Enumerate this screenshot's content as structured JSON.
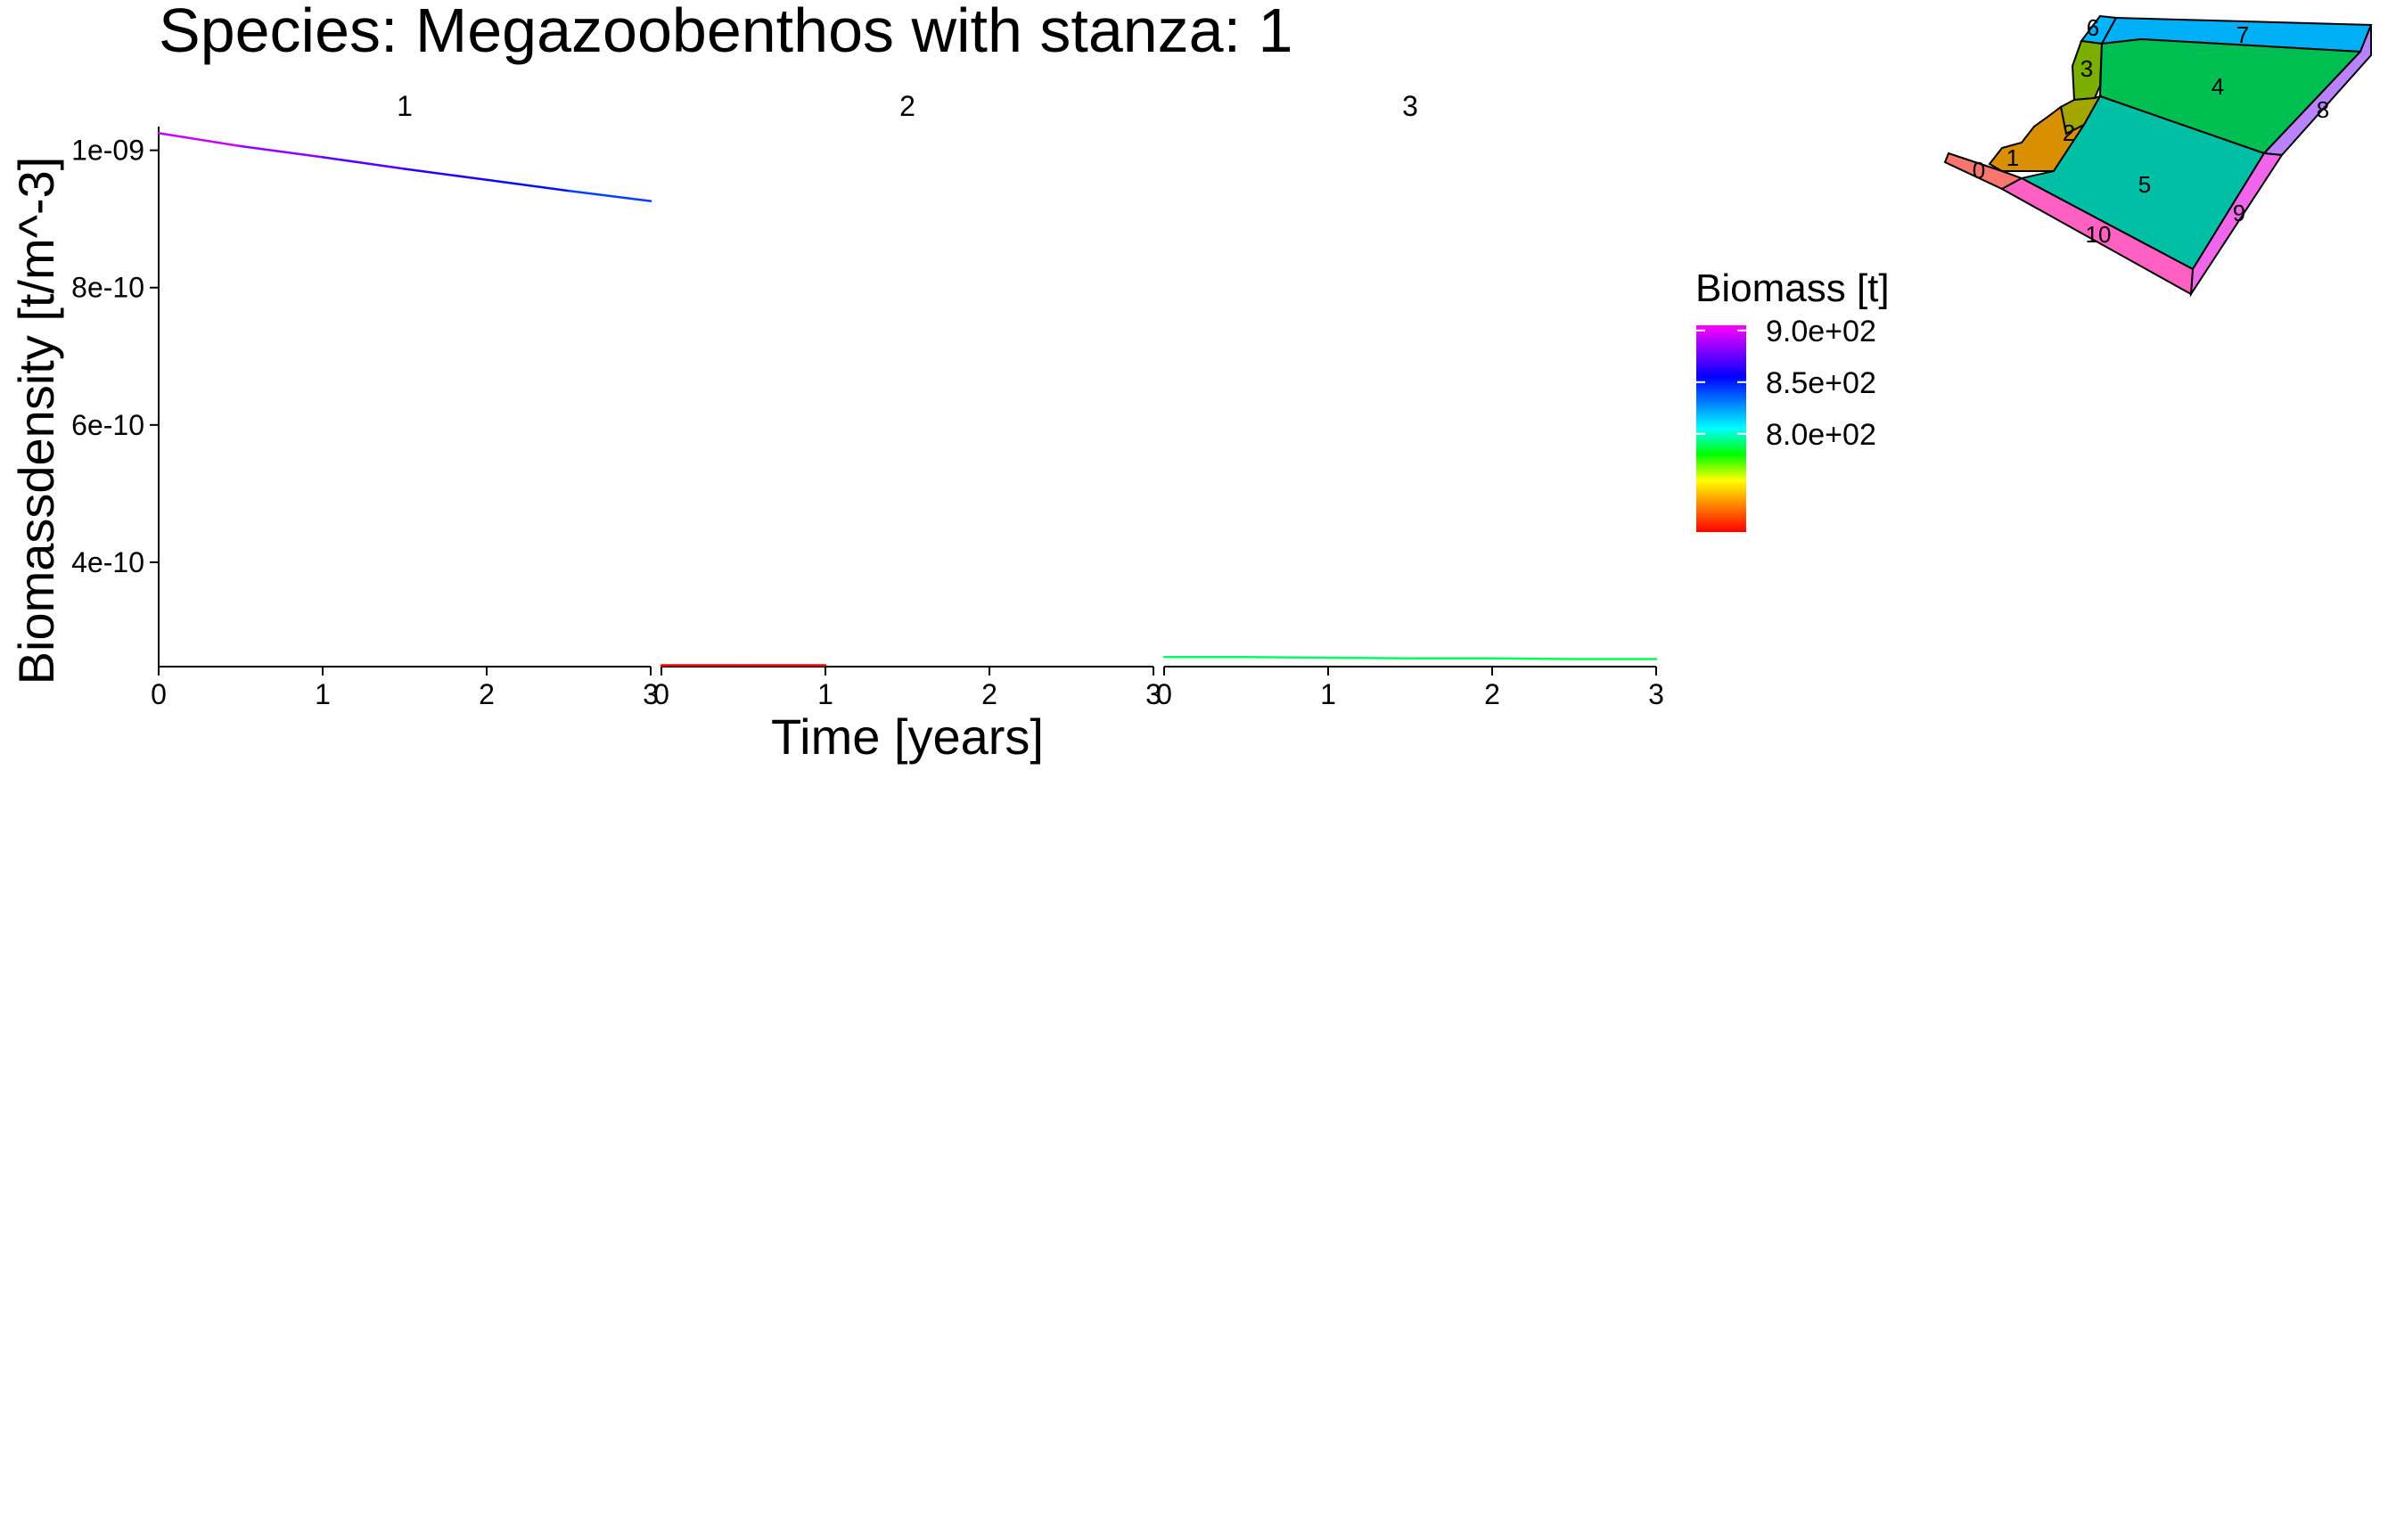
{
  "chart_data": {
    "type": "line",
    "title": "Species: Megazoobenthos with stanza: 1",
    "xlabel": "Time [years]",
    "ylabel": "Biomassdensity [t/m^-3]",
    "y_ticks": [
      {
        "value": 1e-09,
        "label": "1e-09"
      },
      {
        "value": 8e-10,
        "label": "8e-10"
      },
      {
        "value": 6e-10,
        "label": "6e-10"
      },
      {
        "value": 4e-10,
        "label": "4e-10"
      }
    ],
    "ylim": [
      2.48e-10,
      1.0346e-09
    ],
    "xlim": [
      0,
      3
    ],
    "x_ticks": [
      "0",
      "1",
      "2",
      "3"
    ],
    "grid": false,
    "facets": [
      {
        "label": "1",
        "x": [
          0,
          0.5,
          1,
          1.5,
          2,
          2.5,
          3
        ],
        "y": [
          1.025e-09,
          1.006e-09,
          9.9e-10,
          9.73e-10,
          9.57e-10,
          9.41e-10,
          9.26e-10
        ],
        "biomass": [
          900,
          889,
          878,
          867,
          857,
          847,
          838
        ]
      },
      {
        "label": "2",
        "x": [
          0,
          0.5,
          1
        ],
        "y": [
          2.5e-10,
          2.5e-10,
          2.5e-10
        ],
        "biomass": [
          700,
          700,
          700
        ]
      },
      {
        "label": "3",
        "x": [
          0,
          0.5,
          1,
          1.5,
          2,
          2.5,
          3
        ],
        "y": [
          2.62e-10,
          2.62e-10,
          2.61e-10,
          2.6e-10,
          2.6e-10,
          2.59e-10,
          2.59e-10
        ],
        "biomass": [
          790,
          790,
          790,
          789,
          789,
          788,
          788
        ]
      }
    ],
    "color_scale": {
      "title": "Biomass [t]",
      "min": 705,
      "max": 905,
      "ticks": [
        {
          "value": 900,
          "label": "9.0e+02"
        },
        {
          "value": 850,
          "label": "8.5e+02"
        },
        {
          "value": 800,
          "label": "8.0e+02"
        }
      ],
      "colors": [
        "#ff0000",
        "#ff8000",
        "#ffff00",
        "#00ff00",
        "#00ffff",
        "#0080ff",
        "#0000ff",
        "#8000ff",
        "#ff00ff"
      ]
    },
    "map": {
      "labels": [
        "0",
        "1",
        "2",
        "3",
        "4",
        "5",
        "6",
        "7",
        "8",
        "9",
        "10"
      ],
      "colors": {
        "0": "#f8766d",
        "1": "#d89000",
        "2": "#a3a500",
        "3": "#7cae00",
        "4": "#00bf52",
        "5": "#00bfa5",
        "6": "#00b5ff",
        "7": "#00b0f6",
        "8": "#b983ff",
        "9": "#f066ea",
        "10": "#ff61c3"
      }
    }
  }
}
